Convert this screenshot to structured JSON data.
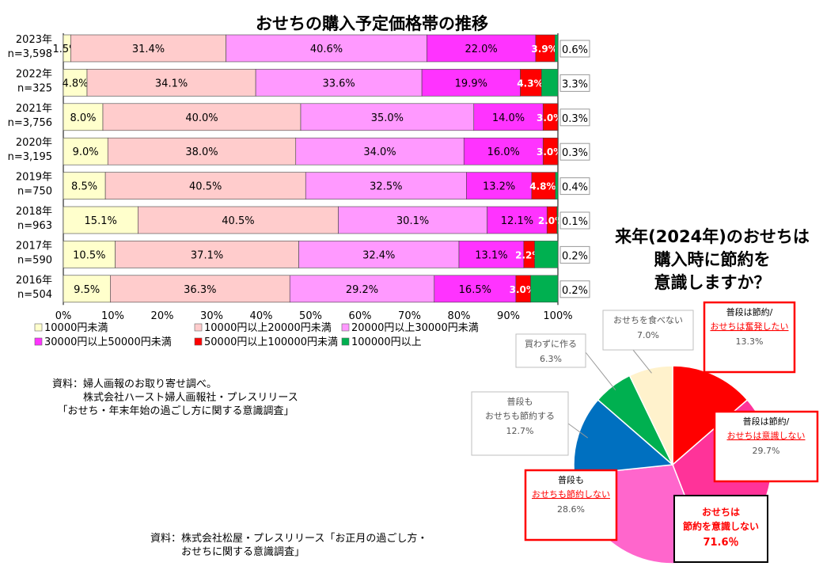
{
  "bar_chart_title": "おせちの購入予定価格帯の推移",
  "pie_chart_title": "来年(2024年)のおせちは\n購入時に節約を\n意識しますか？",
  "source_1": "資料：婦人画報のお取り寄せ調べ。\n　　　株式会社ハースト婦人画報社・プレスリリース\n　「おせち・年末年始の過ごし方に関する意識調査」",
  "source_2": "資料：株式会社松屋・プレスリリース「お正月の過ごし方・\n　　　おせちに関する意識調査」",
  "chart_data": [
    {
      "type": "bar",
      "orientation": "horizontal",
      "stacked": "percent",
      "title": "おせちの購入予定価格帯の推移",
      "categories": [
        [
          "2023年",
          "n=3,598"
        ],
        [
          "2022年",
          "n=325"
        ],
        [
          "2021年",
          "n=3,756"
        ],
        [
          "2020年",
          "n=3,195"
        ],
        [
          "2019年",
          "n=750"
        ],
        [
          "2018年",
          "n=963"
        ],
        [
          "2017年",
          "n=590"
        ],
        [
          "2016年",
          "n=504"
        ]
      ],
      "xlim": [
        0,
        100
      ],
      "xticks": [
        "0%",
        "10%",
        "20%",
        "30%",
        "40%",
        "50%",
        "60%",
        "70%",
        "80%",
        "90%",
        "100%"
      ],
      "legend_position": "bottom",
      "series": [
        {
          "name": "10000円未満",
          "color": "#FFFFCC",
          "values": [
            1.5,
            4.8,
            8.0,
            9.0,
            8.5,
            15.1,
            10.5,
            9.5
          ],
          "labels": [
            "1.5%",
            "4.8%",
            "8.0%",
            "9.0%",
            "8.5%",
            "15.1%",
            "10.5%",
            "9.5%"
          ]
        },
        {
          "name": "10000円以上20000円未満",
          "color": "#FFCCCC",
          "values": [
            31.4,
            34.1,
            40.0,
            38.0,
            40.5,
            40.5,
            37.1,
            36.3
          ],
          "labels": [
            "31.4%",
            "34.1%",
            "40.0%",
            "38.0%",
            "40.5%",
            "40.5%",
            "37.1%",
            "36.3%"
          ]
        },
        {
          "name": "20000円以上30000円未満",
          "color": "#FF99FF",
          "values": [
            40.6,
            33.6,
            35.0,
            34.0,
            32.5,
            30.1,
            32.4,
            29.2
          ],
          "labels": [
            "40.6%",
            "33.6%",
            "35.0%",
            "34.0%",
            "32.5%",
            "30.1%",
            "32.4%",
            "29.2%"
          ]
        },
        {
          "name": "30000円以上50000円未満",
          "color": "#FF33FF",
          "values": [
            22.0,
            19.9,
            14.0,
            16.0,
            13.2,
            12.1,
            13.1,
            16.5
          ],
          "labels": [
            "22.0%",
            "19.9%",
            "14.0%",
            "16.0%",
            "13.2%",
            "12.1%",
            "13.1%",
            "16.5%"
          ]
        },
        {
          "name": "50000円以上100000円未満",
          "color": "#FF0000",
          "values": [
            3.9,
            4.3,
            3.0,
            3.0,
            4.8,
            2.0,
            2.2,
            3.0
          ],
          "labels": [
            "3.9%",
            "4.3%",
            "3.0%",
            "3.0%",
            "4.8%",
            "2.0%",
            "2.2%",
            "3.0%"
          ]
        },
        {
          "name": "100000円以上",
          "color": "#00B050",
          "values": [
            0.6,
            3.3,
            0.3,
            0.3,
            0.4,
            0.1,
            0.2,
            0.2
          ],
          "labels": [
            "0.6%",
            "3.3%",
            "0.3%",
            "0.3%",
            "0.4%",
            "0.1%",
            "0.2%",
            "0.2%"
          ]
        }
      ]
    },
    {
      "type": "pie",
      "title": "来年(2024年)のおせちは\n購入時に節約を\n意識しますか？",
      "slices": [
        {
          "top": "普段は節約/",
          "main": "おせちは奮発したい",
          "value": 13.3,
          "pct": "13.3%",
          "color": "#FF0000",
          "border": "#FF0000",
          "underline": true
        },
        {
          "top": "普段は節約/",
          "main": "おせちは意識しない",
          "value": 29.7,
          "pct": "29.7%",
          "color": "#FF3399",
          "border": "#FF0000",
          "underline": true
        },
        {
          "top": "普段も",
          "main": "おせちも節約しない",
          "value": 28.6,
          "pct": "28.6%",
          "color": "#FF66CC",
          "border": "#FF0000",
          "underline": true
        },
        {
          "top": "普段も",
          "main": "おせちも節約する",
          "value": 12.7,
          "pct": "12.7%",
          "color": "#0070C0",
          "border": "#BFBFBF",
          "underline": false
        },
        {
          "top": "",
          "main": "買わずに作る",
          "value": 6.3,
          "pct": "6.3%",
          "color": "#00B050",
          "border": "#BFBFBF",
          "underline": false
        },
        {
          "top": "",
          "main": "おせちを食べない",
          "value": 7.0,
          "pct": "7.0%",
          "color": "#FFF2CC",
          "border": "#BFBFBF",
          "underline": false
        }
      ],
      "summary": {
        "line1": "おせちは",
        "line2": "節約を意識しない",
        "pct": "71.6％"
      }
    }
  ]
}
